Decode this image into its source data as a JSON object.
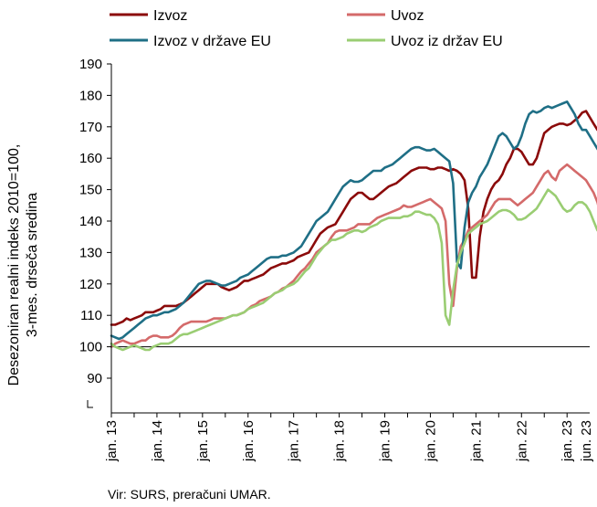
{
  "source_note": "Vir: SURS, preračuni UMAR.",
  "chart_data": {
    "type": "line",
    "title": "",
    "ylabel": [
      "Desezoniran realni indeks 2010=100,",
      "3-mes. drseča sredina"
    ],
    "xlabel": "",
    "ylim": [
      90,
      190
    ],
    "y_ticks": [
      90,
      100,
      110,
      120,
      130,
      140,
      150,
      160,
      170,
      180,
      190
    ],
    "x_ticks": [
      "jan. 13",
      "jan. 14",
      "jan. 15",
      "jan. 16",
      "jan. 17",
      "jan. 18",
      "jan. 19",
      "jan. 20",
      "jan. 21",
      "jan. 22",
      "jan. 23",
      "jun. 23"
    ],
    "x_tick_months": [
      0,
      12,
      24,
      36,
      48,
      60,
      72,
      84,
      96,
      108,
      120,
      125
    ],
    "x_start": "jan. 13",
    "x_end": "jun. 23",
    "reference_line": 100,
    "axis_break": true,
    "legend_position": "top",
    "grid": false,
    "series": [
      {
        "name": "Izvoz",
        "color": "#8b0a0a",
        "values": [
          107,
          107,
          107.5,
          108,
          109,
          108.5,
          109,
          109.5,
          110,
          111,
          111,
          111,
          111.5,
          112,
          113,
          113,
          113,
          113,
          113.5,
          114,
          115,
          116,
          117,
          118,
          119,
          120,
          120,
          120,
          120,
          119,
          118.5,
          118,
          118.5,
          119,
          120,
          121,
          121,
          121.5,
          122,
          122.5,
          123,
          124,
          125,
          125.5,
          126,
          126.5,
          126.5,
          127,
          127.5,
          128.5,
          129,
          129.5,
          130,
          132,
          134,
          136,
          137,
          138,
          138.5,
          139,
          141,
          143,
          145,
          147,
          148,
          149,
          149,
          148,
          147,
          147,
          148,
          149,
          150,
          151,
          151.5,
          152,
          153,
          154,
          155,
          156,
          156.5,
          157,
          157,
          157,
          156.5,
          156.5,
          157,
          157,
          156.5,
          156,
          156.5,
          156,
          155,
          153,
          144,
          122,
          122,
          135,
          143,
          147,
          150,
          152,
          153,
          155,
          158,
          160,
          163,
          163,
          162,
          160,
          158,
          158,
          160,
          164,
          168,
          169,
          170,
          170.5,
          171,
          171,
          170.5,
          171,
          172,
          173,
          174.5,
          175,
          173,
          171,
          169,
          168,
          167,
          165,
          163.5,
          163
        ]
      },
      {
        "name": "Uvoz",
        "color": "#d46a6a",
        "values": [
          100,
          101,
          101.5,
          102,
          101.5,
          101,
          101,
          101.5,
          102,
          102,
          103,
          103.5,
          103.5,
          103,
          103,
          103,
          103.5,
          104.5,
          106,
          107,
          107.5,
          108,
          108,
          108,
          108,
          108,
          108.5,
          109,
          109,
          109,
          109,
          109.5,
          110,
          110,
          110.5,
          111,
          112,
          113,
          113.5,
          114.5,
          115,
          115.5,
          116,
          117,
          117.5,
          118.5,
          119,
          120,
          121,
          122.5,
          124,
          125,
          126.5,
          128,
          130,
          131,
          132,
          133,
          135,
          136.5,
          137,
          137,
          137,
          137.5,
          138,
          139,
          139,
          139,
          139,
          140,
          141,
          141.5,
          142,
          142.5,
          143,
          143.5,
          144,
          145,
          144.5,
          144.5,
          145,
          145.5,
          146,
          146.5,
          147,
          146,
          145,
          144,
          140,
          120,
          113,
          125,
          132,
          134,
          137,
          138,
          139,
          140,
          141,
          142,
          144,
          146,
          147,
          147,
          147,
          147,
          146,
          145,
          146,
          147,
          148,
          149,
          151,
          153,
          155,
          156,
          154,
          153,
          156,
          157,
          158,
          157,
          156,
          155,
          154,
          153,
          151,
          149,
          146,
          141
        ]
      },
      {
        "name": "Izvoz v države EU",
        "color": "#1f6f86",
        "values": [
          103.5,
          103,
          102.5,
          103,
          104,
          105,
          106,
          107,
          108,
          109,
          109.5,
          110,
          110,
          110.5,
          111,
          111,
          111.5,
          112,
          113,
          114,
          115.5,
          117,
          118.5,
          120,
          120.5,
          121,
          121,
          120.5,
          120,
          119.5,
          119.5,
          120,
          120.5,
          121,
          122,
          122.5,
          123,
          124,
          125,
          126,
          127,
          128,
          128.5,
          128.5,
          128.5,
          129,
          129,
          129.5,
          130,
          131,
          132,
          134,
          136,
          138,
          140,
          141,
          142,
          143,
          145,
          147,
          149,
          151,
          152,
          153,
          152.5,
          152.5,
          153,
          154,
          155,
          156,
          156,
          156,
          157,
          157.5,
          158,
          159,
          160,
          161,
          162,
          163,
          163.5,
          163.5,
          163,
          162.5,
          162.5,
          163,
          162,
          161,
          160,
          159,
          152,
          127,
          125,
          138,
          146,
          149,
          151,
          154,
          156,
          158,
          161,
          164,
          167,
          168,
          167,
          165,
          163,
          164,
          167,
          171,
          174,
          175,
          174.5,
          175,
          176,
          176.5,
          176,
          176.5,
          177,
          177.5,
          178,
          176,
          174,
          171,
          169,
          169,
          167,
          165,
          163,
          161
        ]
      },
      {
        "name": "Uvoz iz držav EU",
        "color": "#9acd73",
        "values": [
          101,
          100,
          99.5,
          99,
          99.5,
          100,
          100.5,
          100,
          99.5,
          99,
          99,
          100,
          100.5,
          101,
          101,
          101,
          101.5,
          102.5,
          103.5,
          104,
          104,
          104.5,
          105,
          105.5,
          106,
          106.5,
          107,
          107.5,
          108,
          108.5,
          109,
          109.5,
          110,
          110,
          110.5,
          111,
          112,
          112.5,
          113,
          113.5,
          114,
          115,
          116,
          117,
          117.5,
          118,
          119,
          119.5,
          120,
          121,
          122.5,
          124,
          125,
          127,
          129,
          130.5,
          132,
          133,
          134,
          134,
          134.5,
          135,
          136,
          136.5,
          137,
          137,
          136.5,
          137,
          138,
          138.5,
          139,
          140,
          140.5,
          141,
          141,
          141,
          141,
          141.5,
          141.5,
          142,
          143,
          143,
          142.5,
          142,
          142,
          141,
          139,
          133,
          110,
          107,
          118,
          126,
          130,
          133,
          136,
          137,
          138,
          139,
          139.5,
          140,
          141,
          142,
          143,
          143.5,
          143.5,
          143,
          142,
          140.5,
          140.5,
          141,
          142,
          143,
          144,
          146,
          148,
          150,
          149,
          148,
          146,
          144,
          143,
          143.5,
          145,
          146,
          146,
          145,
          143,
          140,
          137,
          136.5
        ]
      }
    ]
  }
}
